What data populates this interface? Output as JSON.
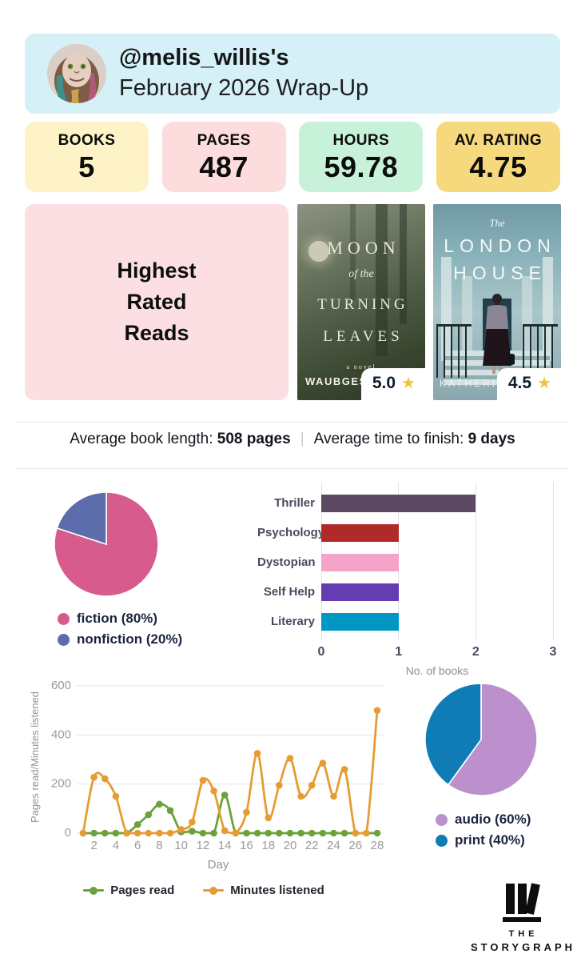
{
  "header": {
    "username_line": "@melis_willis's",
    "subtitle": "February 2026 Wrap-Up"
  },
  "stats": [
    {
      "label": "BOOKS",
      "value": "5",
      "bg": "#fdf3c7"
    },
    {
      "label": "PAGES",
      "value": "487",
      "bg": "#fcdcdc"
    },
    {
      "label": "HOURS",
      "value": "59.78",
      "bg": "#c8f1da"
    },
    {
      "label": "AV. RATING",
      "value": "4.75",
      "bg": "#f6d87d"
    }
  ],
  "highest_rated": {
    "lines": [
      "Highest",
      "Rated",
      "Reads"
    ],
    "star": "★",
    "books": [
      {
        "title_word1": "MOON",
        "title_word2": "of the",
        "title_word3": "TURNING",
        "title_word4": "LEAVES",
        "novel_note": "a novel",
        "author": "WAUBGESHIG RICE",
        "rating": "5.0"
      },
      {
        "title_pre": "The",
        "title_line1": "LONDON",
        "title_line2": "HOUSE",
        "author": "KATHERINE REAY",
        "rating": "4.5"
      }
    ]
  },
  "averages": {
    "length_label": "Average book length:",
    "length_value": "508 pages",
    "separator": "|",
    "time_label": "Average time to finish:",
    "time_value": "9 days"
  },
  "chart_data": [
    {
      "id": "fiction_pie",
      "type": "pie",
      "labels": [
        "fiction",
        "nonfiction"
      ],
      "values": [
        80,
        20
      ],
      "colors": [
        "#d75b8d",
        "#5d6cab"
      ],
      "legend": [
        "fiction (80%)",
        "nonfiction (20%)"
      ],
      "legend_position": "bottom-left"
    },
    {
      "id": "genre_bars",
      "type": "bar",
      "orientation": "horizontal",
      "categories": [
        "Thriller",
        "Psychology",
        "Dystopian",
        "Self Help",
        "Literary"
      ],
      "values": [
        2,
        1,
        1,
        1,
        1
      ],
      "colors": [
        "#5c4962",
        "#b02a2a",
        "#f5a3c6",
        "#663cb3",
        "#0098c2"
      ],
      "xlabel": "No. of books",
      "xticks": [
        0,
        1,
        2,
        3
      ],
      "xlim": [
        0,
        3
      ],
      "grid": true
    },
    {
      "id": "daily_reading_line",
      "type": "line",
      "xlabel": "Day",
      "ylabel": "Pages read/Minutes listened",
      "x": [
        1,
        2,
        3,
        4,
        5,
        6,
        7,
        8,
        9,
        10,
        11,
        12,
        13,
        14,
        15,
        16,
        17,
        18,
        19,
        20,
        21,
        22,
        23,
        24,
        25,
        26,
        27,
        28
      ],
      "xticks": [
        2,
        4,
        6,
        8,
        10,
        12,
        14,
        16,
        18,
        20,
        22,
        24,
        26,
        28
      ],
      "yticks": [
        0,
        200,
        400,
        600
      ],
      "ylim": [
        0,
        600
      ],
      "grid": "horizontal",
      "series": [
        {
          "name": "Pages read",
          "color": "#6ba23d",
          "values": [
            0,
            0,
            0,
            0,
            0,
            35,
            75,
            118,
            92,
            5,
            8,
            0,
            0,
            155,
            0,
            0,
            0,
            0,
            0,
            0,
            0,
            0,
            0,
            0,
            0,
            0,
            0,
            0
          ]
        },
        {
          "name": "Minutes listened",
          "color": "#e59d33",
          "values": [
            0,
            228,
            222,
            150,
            0,
            0,
            0,
            0,
            0,
            15,
            45,
            215,
            172,
            10,
            0,
            85,
            325,
            62,
            195,
            305,
            150,
            195,
            285,
            150,
            260,
            0,
            0,
            500
          ]
        }
      ],
      "legend_position": "bottom"
    },
    {
      "id": "format_pie",
      "type": "pie",
      "labels": [
        "audio",
        "print"
      ],
      "values": [
        60,
        40
      ],
      "colors": [
        "#bc90cd",
        "#0f7cb6"
      ],
      "legend": [
        "audio (60%)",
        "print (40%)"
      ],
      "legend_position": "bottom-left"
    }
  ],
  "logo": {
    "line1": "THE",
    "line2": "STORYGRAPH"
  }
}
